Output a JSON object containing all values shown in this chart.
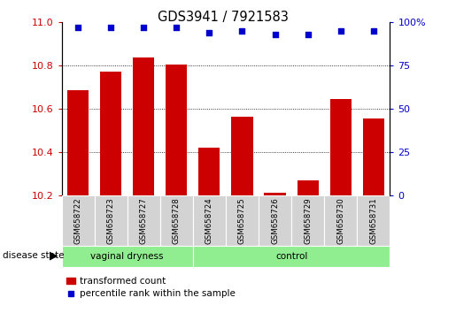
{
  "title": "GDS3941 / 7921583",
  "samples": [
    "GSM658722",
    "GSM658723",
    "GSM658727",
    "GSM658728",
    "GSM658724",
    "GSM658725",
    "GSM658726",
    "GSM658729",
    "GSM658730",
    "GSM658731"
  ],
  "bar_values": [
    10.685,
    10.77,
    10.835,
    10.805,
    10.42,
    10.565,
    10.215,
    10.27,
    10.645,
    10.555
  ],
  "dot_values": [
    97,
    97,
    97,
    97,
    94,
    95,
    93,
    93,
    95,
    95
  ],
  "ymin": 10.2,
  "ymax": 11.0,
  "yticks_left": [
    10.2,
    10.4,
    10.6,
    10.8,
    11.0
  ],
  "yticks_right": [
    0,
    25,
    50,
    75,
    100
  ],
  "bar_color": "#cc0000",
  "dot_color": "#0000cc",
  "group1_label": "vaginal dryness",
  "group2_label": "control",
  "group1_count": 4,
  "group2_count": 6,
  "disease_state_label": "disease state",
  "legend_bar_label": "transformed count",
  "legend_dot_label": "percentile rank within the sample",
  "bg_color_group": "#90EE90",
  "tick_area_color": "#d3d3d3",
  "xlabel_color": "#cc0000",
  "ylabel_right_color": "#0000cc",
  "grid_levels": [
    10.4,
    10.6,
    10.8
  ]
}
